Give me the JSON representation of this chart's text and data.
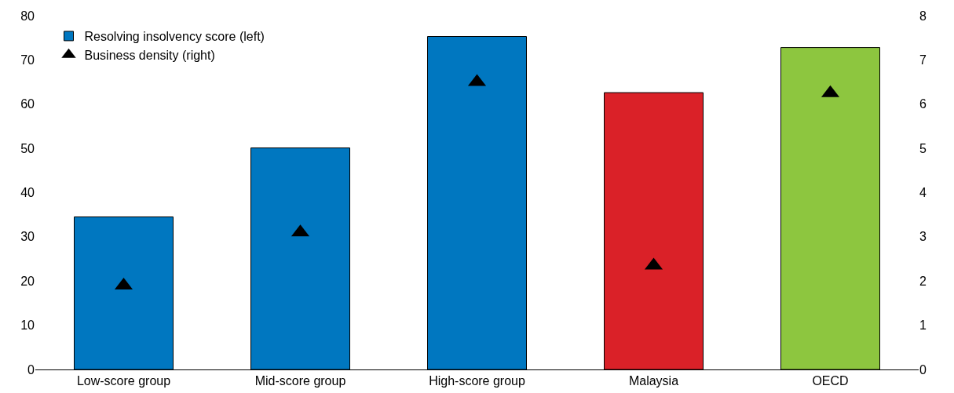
{
  "chart_data": {
    "type": "bar",
    "categories": [
      "Low-score group",
      "Mid-score group",
      "High-score group",
      "Malaysia",
      "OECD"
    ],
    "series": [
      {
        "name": "Resolving insolvency score (left)",
        "colors": [
          "#0077c0",
          "#0077c0",
          "#0077c0",
          "#da2128",
          "#8dc63f"
        ],
        "values": [
          34.5,
          50.1,
          75.3,
          62.6,
          72.8
        ]
      },
      {
        "name": "Business density (right)",
        "type": "scatter",
        "axis": "y2",
        "color": "#000000",
        "marker": "triangle",
        "values": [
          1.9,
          3.1,
          6.5,
          2.35,
          6.25
        ]
      }
    ],
    "ylim": [
      0,
      80
    ],
    "yticks": [
      0,
      10,
      20,
      30,
      40,
      50,
      60,
      70,
      80
    ],
    "y2lim": [
      0,
      8
    ],
    "y2ticks": [
      0,
      1,
      2,
      3,
      4,
      5,
      6,
      7,
      8
    ],
    "grid": false,
    "legend": "top left"
  }
}
